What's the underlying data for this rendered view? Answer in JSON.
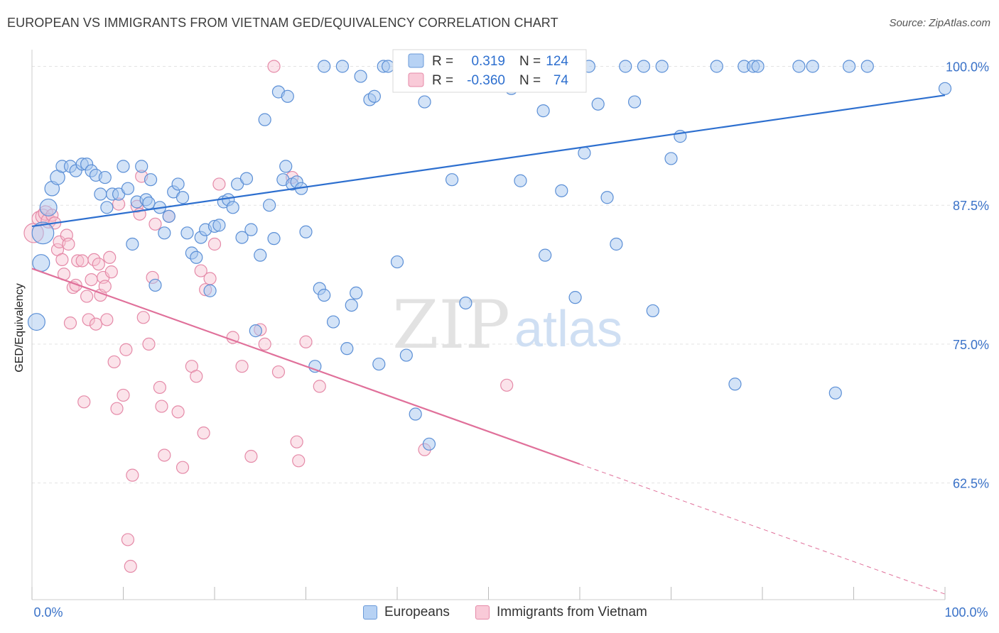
{
  "title": "EUROPEAN VS IMMIGRANTS FROM VIETNAM GED/EQUIVALENCY CORRELATION CHART",
  "source": "Source: ZipAtlas.com",
  "watermark": {
    "zip": "ZIP",
    "atlas": "atlas"
  },
  "legend": {
    "r_label": "R =",
    "n_label": "N =",
    "series": [
      {
        "name": "Europeans",
        "r": "0.319",
        "n": "124"
      },
      {
        "name": "Immigrants from Vietnam",
        "r": "-0.360",
        "n": "74"
      }
    ]
  },
  "chart_data": {
    "type": "scatter",
    "title": "EUROPEAN VS IMMIGRANTS FROM VIETNAM GED/EQUIVALENCY CORRELATION CHART",
    "xlabel": "",
    "ylabel": "GED/Equivalency",
    "xlim": [
      0,
      100
    ],
    "ylim": [
      52,
      101.5
    ],
    "x_tick_labels": [
      "0.0%",
      "100.0%"
    ],
    "y_ticks": [
      62.5,
      75.0,
      87.5,
      100.0
    ],
    "y_tick_labels": [
      "62.5%",
      "75.0%",
      "87.5%",
      "100.0%"
    ],
    "grid": true,
    "legend_position": "top-center",
    "colors": {
      "europeans_fill": "#a8c8f0",
      "europeans_stroke": "#5b8fd6",
      "europeans_line": "#2d6fcf",
      "vietnam_fill": "#f7c0d0",
      "vietnam_stroke": "#e58aa8",
      "vietnam_line": "#e0709a",
      "tick_label": "#3a72c8"
    },
    "series": [
      {
        "name": "Europeans",
        "trend": {
          "x": [
            0,
            100
          ],
          "y": [
            85.6,
            97.4
          ]
        },
        "points": [
          [
            0.5,
            77,
            14
          ],
          [
            1,
            82.3,
            14
          ],
          [
            1.2,
            85,
            18
          ],
          [
            1.8,
            87.3,
            14
          ],
          [
            2.2,
            89,
            12
          ],
          [
            2.8,
            90,
            12
          ],
          [
            3.3,
            91,
            10
          ],
          [
            4.2,
            91,
            10
          ],
          [
            4.8,
            90.6,
            10
          ],
          [
            5.5,
            91.2,
            10
          ],
          [
            6,
            91.2,
            10
          ],
          [
            6.5,
            90.6,
            10
          ],
          [
            7,
            90.2,
            10
          ],
          [
            7.5,
            88.5,
            10
          ],
          [
            8.0,
            90,
            10
          ],
          [
            8.2,
            87.3,
            10
          ],
          [
            8.8,
            88.5,
            10
          ],
          [
            9.5,
            88.5,
            10
          ],
          [
            10,
            91,
            10
          ],
          [
            10.5,
            89,
            10
          ],
          [
            11,
            84,
            10
          ],
          [
            11.5,
            87.8,
            10
          ],
          [
            12,
            91,
            10
          ],
          [
            12.5,
            88,
            10
          ],
          [
            12.8,
            87.7,
            10
          ],
          [
            13,
            89.8,
            10
          ],
          [
            13.5,
            80.3,
            10
          ],
          [
            14,
            87.3,
            10
          ],
          [
            14.5,
            85,
            10
          ],
          [
            15,
            86.5,
            10
          ],
          [
            15.5,
            88.7,
            10
          ],
          [
            16,
            89.4,
            10
          ],
          [
            16.5,
            88.2,
            10
          ],
          [
            17,
            85,
            10
          ],
          [
            17.5,
            83.2,
            10
          ],
          [
            18,
            82.8,
            10
          ],
          [
            18.5,
            84.6,
            10
          ],
          [
            19,
            85.3,
            10
          ],
          [
            19.5,
            79.8,
            10
          ],
          [
            20,
            85.6,
            10
          ],
          [
            20.5,
            85.7,
            10
          ],
          [
            21,
            87.8,
            10
          ],
          [
            21.5,
            88,
            10
          ],
          [
            22,
            87.3,
            10
          ],
          [
            22.5,
            89.4,
            10
          ],
          [
            23,
            84.6,
            10
          ],
          [
            23.5,
            89.9,
            10
          ],
          [
            24,
            85.3,
            10
          ],
          [
            24.5,
            76.2,
            10
          ],
          [
            25,
            83,
            10
          ],
          [
            25.5,
            95.2,
            10
          ],
          [
            26,
            87.5,
            10
          ],
          [
            26.5,
            84.5,
            10
          ],
          [
            27,
            97.7,
            10
          ],
          [
            27.5,
            89.8,
            10
          ],
          [
            27.8,
            91,
            10
          ],
          [
            28,
            97.3,
            10
          ],
          [
            28.5,
            89.4,
            10
          ],
          [
            29,
            89.6,
            10
          ],
          [
            29.5,
            89,
            10
          ],
          [
            30,
            85.1,
            10
          ],
          [
            31,
            73,
            10
          ],
          [
            31.5,
            80,
            10
          ],
          [
            32,
            79.4,
            10
          ],
          [
            32,
            100,
            10
          ],
          [
            33,
            77,
            10
          ],
          [
            34,
            100,
            10
          ],
          [
            34.5,
            74.6,
            10
          ],
          [
            35,
            78.5,
            10
          ],
          [
            35.5,
            79.6,
            10
          ],
          [
            36,
            99.1,
            10
          ],
          [
            37,
            97,
            10
          ],
          [
            37.5,
            97.3,
            10
          ],
          [
            38,
            73.2,
            10
          ],
          [
            38.5,
            100,
            10
          ],
          [
            39,
            100,
            10
          ],
          [
            40,
            82.4,
            10
          ],
          [
            40.5,
            100,
            10
          ],
          [
            41,
            74,
            10
          ],
          [
            42,
            68.7,
            10
          ],
          [
            42.5,
            100,
            10
          ],
          [
            43,
            96.8,
            10
          ],
          [
            43.5,
            66,
            10
          ],
          [
            44,
            100,
            10
          ],
          [
            45,
            100,
            10
          ],
          [
            46,
            89.8,
            10
          ],
          [
            47,
            100,
            10
          ],
          [
            47.5,
            78.7,
            10
          ],
          [
            48,
            100,
            10
          ],
          [
            49,
            100,
            10
          ],
          [
            49.5,
            100,
            10
          ],
          [
            50,
            100,
            10
          ],
          [
            51,
            100,
            10
          ],
          [
            52,
            100,
            10
          ],
          [
            52.5,
            98,
            10
          ],
          [
            53,
            100,
            10
          ],
          [
            53.5,
            89.7,
            10
          ],
          [
            54,
            100,
            10
          ],
          [
            55,
            100,
            10
          ],
          [
            56,
            96,
            10
          ],
          [
            56.2,
            83,
            10
          ],
          [
            57,
            100,
            10
          ],
          [
            58,
            88.8,
            10
          ],
          [
            59,
            100,
            10
          ],
          [
            59.5,
            79.2,
            10
          ],
          [
            60,
            100,
            10
          ],
          [
            60.5,
            92.2,
            10
          ],
          [
            61,
            100,
            10
          ],
          [
            62,
            96.6,
            10
          ],
          [
            63,
            88.2,
            10
          ],
          [
            64,
            84,
            10
          ],
          [
            65,
            100,
            10
          ],
          [
            66,
            96.8,
            10
          ],
          [
            67,
            100,
            10
          ],
          [
            68,
            78,
            10
          ],
          [
            69,
            100,
            10
          ],
          [
            70,
            91.7,
            10
          ],
          [
            71,
            93.7,
            10
          ],
          [
            75,
            100,
            10
          ],
          [
            77,
            71.4,
            10
          ],
          [
            78,
            100,
            10
          ],
          [
            79,
            100,
            10
          ],
          [
            79.5,
            100,
            10
          ],
          [
            84,
            100,
            10
          ],
          [
            85.5,
            100,
            10
          ],
          [
            88,
            70.6,
            10
          ],
          [
            89.5,
            100,
            10
          ],
          [
            91.5,
            100,
            10
          ],
          [
            100,
            98,
            10
          ]
        ]
      },
      {
        "name": "Immigrants from Vietnam",
        "trend": {
          "x": [
            0,
            60
          ],
          "y": [
            81.8,
            64.2
          ]
        },
        "trend_dashed": {
          "x": [
            60,
            100
          ],
          "y": [
            64.2,
            52.5
          ]
        },
        "points": [
          [
            0.2,
            85,
            16
          ],
          [
            0.8,
            86.3,
            12
          ],
          [
            1.2,
            86.5,
            12
          ],
          [
            1.5,
            86.8,
            12
          ],
          [
            1.8,
            86.1,
            12
          ],
          [
            2.2,
            86.6,
            10
          ],
          [
            2.5,
            85.9,
            10
          ],
          [
            2.8,
            83.5,
            10
          ],
          [
            3,
            84.2,
            10
          ],
          [
            3.3,
            82.6,
            10
          ],
          [
            3.5,
            81.3,
            10
          ],
          [
            3.8,
            84.8,
            10
          ],
          [
            4,
            84,
            10
          ],
          [
            4.2,
            76.9,
            10
          ],
          [
            4.5,
            80.1,
            10
          ],
          [
            4.8,
            80.3,
            10
          ],
          [
            5,
            82.5,
            10
          ],
          [
            5.5,
            82.5,
            10
          ],
          [
            5.7,
            69.8,
            10
          ],
          [
            6,
            79.3,
            10
          ],
          [
            6.2,
            77.2,
            10
          ],
          [
            6.5,
            80.8,
            10
          ],
          [
            6.8,
            82.6,
            10
          ],
          [
            7,
            76.8,
            10
          ],
          [
            7.3,
            82.2,
            10
          ],
          [
            7.5,
            79.4,
            10
          ],
          [
            7.8,
            81,
            10
          ],
          [
            8,
            80.2,
            10
          ],
          [
            8.2,
            77.2,
            10
          ],
          [
            8.5,
            82.8,
            10
          ],
          [
            8.7,
            81.5,
            10
          ],
          [
            9,
            73.4,
            10
          ],
          [
            9.3,
            69.2,
            10
          ],
          [
            9.5,
            87.6,
            10
          ],
          [
            10,
            70.4,
            10
          ],
          [
            10.3,
            74.5,
            10
          ],
          [
            10.5,
            57.4,
            10
          ],
          [
            10.8,
            55,
            10
          ],
          [
            11,
            63.2,
            10
          ],
          [
            11.5,
            87.4,
            10
          ],
          [
            11.8,
            86.7,
            10
          ],
          [
            12,
            90.1,
            10
          ],
          [
            12.2,
            77.4,
            10
          ],
          [
            12.8,
            75,
            10
          ],
          [
            13.2,
            81,
            10
          ],
          [
            13.5,
            85.8,
            10
          ],
          [
            14,
            71.1,
            10
          ],
          [
            14.2,
            69.4,
            10
          ],
          [
            14.5,
            65,
            10
          ],
          [
            15,
            86.5,
            10
          ],
          [
            16,
            68.9,
            10
          ],
          [
            16.5,
            63.9,
            10
          ],
          [
            17.5,
            73,
            10
          ],
          [
            18,
            72.1,
            10
          ],
          [
            18.5,
            81.6,
            10
          ],
          [
            18.8,
            67,
            10
          ],
          [
            19,
            79.9,
            10
          ],
          [
            19.5,
            80.9,
            10
          ],
          [
            20,
            84,
            10
          ],
          [
            20.5,
            89.4,
            10
          ],
          [
            22,
            75.6,
            10
          ],
          [
            23,
            73,
            10
          ],
          [
            24,
            64.9,
            10
          ],
          [
            25,
            76.3,
            10
          ],
          [
            25.5,
            75,
            10
          ],
          [
            26.5,
            100,
            10
          ],
          [
            27,
            72.5,
            10
          ],
          [
            28.5,
            90,
            10
          ],
          [
            29,
            66.2,
            10
          ],
          [
            29.2,
            64.5,
            10
          ],
          [
            30,
            75.2,
            10
          ],
          [
            31.5,
            71.2,
            10
          ],
          [
            43,
            65.5,
            10
          ],
          [
            52,
            71.3,
            10
          ]
        ]
      }
    ]
  }
}
